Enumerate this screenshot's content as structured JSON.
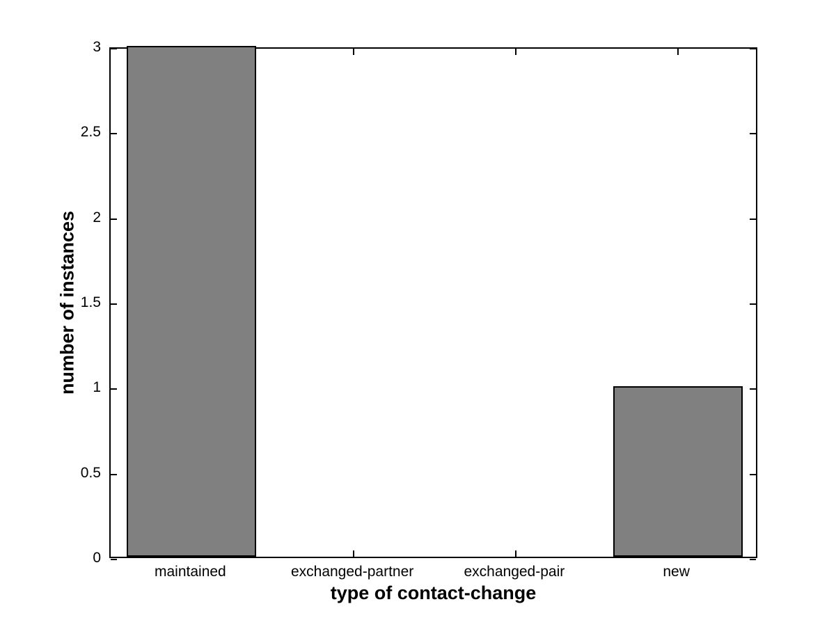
{
  "figure": {
    "background": "#ffffff"
  },
  "chart_data": {
    "type": "bar",
    "title": "",
    "categories": [
      "maintained",
      "exchanged-partner",
      "exchanged-pair",
      "new"
    ],
    "values": [
      3,
      0,
      0,
      1
    ],
    "xlabel": "type of contact-change",
    "ylabel": "number of instances",
    "ylim": [
      0,
      3
    ],
    "yticks": [
      0,
      0.5,
      1,
      1.5,
      2,
      2.5,
      3
    ],
    "ytick_labels": [
      "0",
      "0.5",
      "1",
      "1.5",
      "2",
      "2.5",
      "3"
    ],
    "grid": false,
    "legend": null,
    "box": true,
    "bar_width_fraction": 0.8,
    "bar_fill_color": "#808080",
    "bar_edge_color": "#000000",
    "axis_color": "#000000",
    "text_color": "#000000"
  }
}
